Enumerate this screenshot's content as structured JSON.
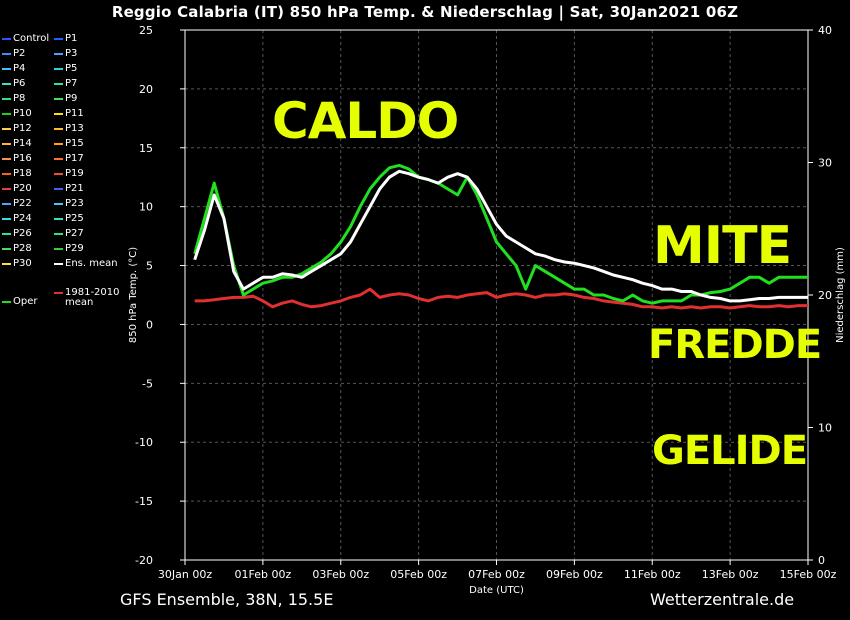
{
  "title": "Reggio Calabria  (IT)  850 hPa Temp. & Niederschlag | Sat, 30Jan2021 06Z",
  "footer": {
    "left": "GFS Ensemble, 38N, 15.5E",
    "right": "Wetterzentrale.de"
  },
  "annotations": {
    "caldo": "CALDO",
    "mite": "MITE",
    "fredde": "FREDDE",
    "gelide": "GELIDE"
  },
  "colors": {
    "annotation": "#e6ff00",
    "ens_mean": "#ffffff",
    "climate_mean": "#e03030",
    "oper": "#20e020"
  },
  "legend": [
    {
      "label": "Control",
      "color": "#3050ff"
    },
    {
      "label": "P1",
      "color": "#2060ff"
    },
    {
      "label": "P2",
      "color": "#3a8cff"
    },
    {
      "label": "P3",
      "color": "#4aa0ff"
    },
    {
      "label": "P4",
      "color": "#40c0ff"
    },
    {
      "label": "P5",
      "color": "#30d0e0"
    },
    {
      "label": "P6",
      "color": "#40e0c0"
    },
    {
      "label": "P7",
      "color": "#30e0a0"
    },
    {
      "label": "P8",
      "color": "#30e080"
    },
    {
      "label": "P9",
      "color": "#40e060"
    },
    {
      "label": "P10",
      "color": "#20d020"
    },
    {
      "label": "P11",
      "color": "#ffe000"
    },
    {
      "label": "P12",
      "color": "#ffd040"
    },
    {
      "label": "P13",
      "color": "#ffc020"
    },
    {
      "label": "P14",
      "color": "#ffb040"
    },
    {
      "label": "P15",
      "color": "#ffa020"
    },
    {
      "label": "P16",
      "color": "#ff9050"
    },
    {
      "label": "P17",
      "color": "#ff7030"
    },
    {
      "label": "P18",
      "color": "#ff6020"
    },
    {
      "label": "P19",
      "color": "#f05030"
    },
    {
      "label": "P20",
      "color": "#e04040"
    },
    {
      "label": "P21",
      "color": "#4060ff"
    },
    {
      "label": "P22",
      "color": "#50a0ff"
    },
    {
      "label": "P23",
      "color": "#40c8ff"
    },
    {
      "label": "P24",
      "color": "#40d8f0"
    },
    {
      "label": "P25",
      "color": "#30e0c0"
    },
    {
      "label": "P26",
      "color": "#30e0a0"
    },
    {
      "label": "P27",
      "color": "#30e080"
    },
    {
      "label": "P28",
      "color": "#40e060"
    },
    {
      "label": "P29",
      "color": "#30d040"
    },
    {
      "label": "P30",
      "color": "#ffe040"
    },
    {
      "label": "Ens. mean",
      "color": "#ffffff"
    },
    {
      "label": "Oper",
      "color": "#20e020"
    },
    {
      "label": "1981-2010\nmean",
      "color": "#e03030"
    }
  ],
  "chart_data": {
    "type": "line",
    "xlabel": "Date (UTC)",
    "ylabel": "850 hPa Temp. (°C)",
    "y2label": "Niederschlag (mm)",
    "ylim": [
      -20,
      25
    ],
    "y2lim": [
      0,
      40
    ],
    "yticks": [
      -20,
      -15,
      -10,
      -5,
      0,
      5,
      10,
      15,
      20,
      25
    ],
    "y2ticks": [
      0,
      10,
      20,
      30,
      40
    ],
    "xticks": [
      "30Jan 00z",
      "01Feb 00z",
      "03Feb 00z",
      "05Feb 00z",
      "07Feb 00z",
      "09Feb 00z",
      "11Feb 00z",
      "13Feb 00z",
      "15Feb 00z"
    ],
    "grid": true,
    "x_days": [
      0.25,
      0.5,
      0.75,
      1.0,
      1.25,
      1.5,
      1.75,
      2.0,
      2.25,
      2.5,
      2.75,
      3.0,
      3.25,
      3.5,
      3.75,
      4.0,
      4.25,
      4.5,
      4.75,
      5.0,
      5.25,
      5.5,
      5.75,
      6.0,
      6.25,
      6.5,
      6.75,
      7.0,
      7.25,
      7.5,
      7.75,
      8.0,
      8.25,
      8.5,
      8.75,
      9.0,
      9.25,
      9.5,
      9.75,
      10.0,
      10.25,
      10.5,
      10.75,
      11.0,
      11.25,
      11.5,
      11.75,
      12.0,
      12.25,
      12.5,
      12.75,
      13.0,
      13.25,
      13.5,
      13.75,
      14.0,
      14.25,
      14.5,
      14.75,
      15.0,
      15.25,
      15.5,
      15.75,
      16.0
    ],
    "series": [
      {
        "name": "Ens. mean",
        "values": [
          5.5,
          8,
          11,
          9,
          4.5,
          3,
          3.5,
          4,
          4,
          4.3,
          4.2,
          4,
          4.5,
          5,
          5.5,
          6,
          7,
          8.5,
          10,
          11.5,
          12.5,
          13,
          12.8,
          12.5,
          12.3,
          12,
          12.5,
          12.8,
          12.5,
          11.5,
          10,
          8.5,
          7.5,
          7,
          6.5,
          6,
          5.8,
          5.5,
          5.3,
          5.2,
          5,
          4.8,
          4.5,
          4.2,
          4,
          3.8,
          3.5,
          3.3,
          3,
          3,
          2.8,
          2.8,
          2.5,
          2.3,
          2.2,
          2,
          2,
          2.1,
          2.2,
          2.2,
          2.3,
          2.3,
          2.3,
          2.3
        ]
      },
      {
        "name": "Oper",
        "values": [
          6,
          9,
          12,
          9,
          5,
          2.5,
          3,
          3.5,
          3.7,
          4,
          4,
          4.3,
          4.8,
          5.3,
          6,
          7,
          8.3,
          10,
          11.5,
          12.5,
          13.3,
          13.5,
          13.2,
          12.5,
          12.3,
          12,
          11.5,
          11,
          12.5,
          11,
          9,
          7,
          6,
          5,
          3,
          5,
          4.5,
          4,
          3.5,
          3,
          3,
          2.5,
          2.5,
          2.2,
          2,
          2.5,
          2,
          1.8,
          2,
          2,
          2,
          2.5,
          2.5,
          2.7,
          2.8,
          3,
          3.5,
          4,
          4,
          3.5,
          4,
          4,
          4,
          4
        ]
      },
      {
        "name": "1981-2010\nmean",
        "values": [
          2,
          2,
          2.1,
          2.2,
          2.3,
          2.3,
          2.4,
          2,
          1.5,
          1.8,
          2,
          1.7,
          1.5,
          1.6,
          1.8,
          2,
          2.3,
          2.5,
          3,
          2.3,
          2.5,
          2.6,
          2.5,
          2.2,
          2,
          2.3,
          2.4,
          2.3,
          2.5,
          2.6,
          2.7,
          2.3,
          2.5,
          2.6,
          2.5,
          2.3,
          2.5,
          2.5,
          2.6,
          2.5,
          2.3,
          2.2,
          2,
          1.9,
          1.8,
          1.7,
          1.5,
          1.5,
          1.4,
          1.5,
          1.4,
          1.5,
          1.4,
          1.5,
          1.5,
          1.4,
          1.5,
          1.6,
          1.5,
          1.5,
          1.6,
          1.5,
          1.6,
          1.6
        ]
      }
    ]
  }
}
